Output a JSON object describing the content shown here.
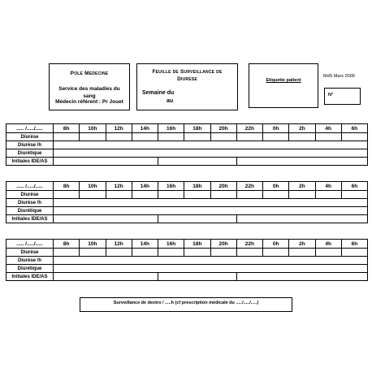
{
  "header": {
    "pole": {
      "title": "Pole Medecine",
      "service": "Service des maladies du sang",
      "doctor": "Médecin référent : Pr Jouet"
    },
    "feuille": {
      "title_line1": "Feuille de Surveillance de",
      "title_line2": "Diurese",
      "semaine": "Semaine du",
      "au": "au"
    },
    "etiquette": "Etiquette patient",
    "mds": "MdS Mars 2009",
    "numero": "N°"
  },
  "tables": [
    {
      "date": "..... /...../.....",
      "hours": [
        "8h",
        "10h",
        "12h",
        "14h",
        "16h",
        "18h",
        "20h",
        "22h",
        "0h",
        "2h",
        "4h",
        "6h"
      ],
      "rows": [
        "Diurèse",
        "Diurèse /h",
        "Diurétique",
        "Initiales IDE/AS"
      ]
    },
    {
      "date": "..... /...../.....",
      "hours": [
        "8h",
        "10h",
        "12h",
        "14h",
        "16h",
        "18h",
        "20h",
        "22h",
        "0h",
        "2h",
        "4h",
        "6h"
      ],
      "rows": [
        "Diurèse",
        "Diurèse /h",
        "Diurétique",
        "Initiales IDE/AS"
      ]
    },
    {
      "date": "..... /...../.....",
      "hours": [
        "8h",
        "10h",
        "12h",
        "14h",
        "16h",
        "18h",
        "20h",
        "22h",
        "0h",
        "2h",
        "4h",
        "6h"
      ],
      "rows": [
        "Diurèse",
        "Diurèse /h",
        "Diurétique",
        "Initiales IDE/AS"
      ]
    }
  ],
  "footer": "Surveillance de dextro / .....h (cf prescription médicale du ...../...../.....)"
}
